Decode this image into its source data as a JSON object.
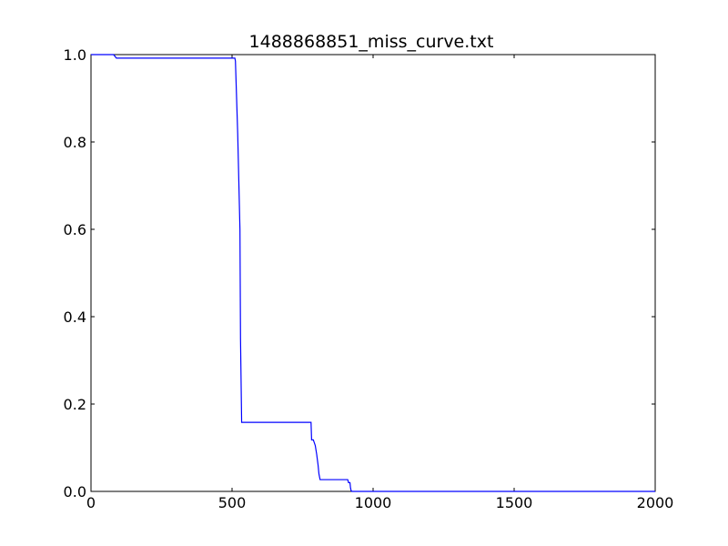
{
  "chart_data": {
    "type": "line",
    "title": "1488868851_miss_curve.txt",
    "xlabel": "",
    "ylabel": "",
    "xlim": [
      0,
      2000
    ],
    "ylim": [
      0.0,
      1.0
    ],
    "x_ticks": [
      0,
      500,
      1000,
      1500,
      2000
    ],
    "x_tick_labels": [
      "0",
      "500",
      "1000",
      "1500",
      "2000"
    ],
    "y_ticks": [
      0.0,
      0.2,
      0.4,
      0.6,
      0.8,
      1.0
    ],
    "y_tick_labels": [
      "0.0",
      "0.2",
      "0.4",
      "0.6",
      "0.8",
      "1.0"
    ],
    "grid": false,
    "legend": "none",
    "series": [
      {
        "color": "#0000ff",
        "x": [
          0,
          80,
          90,
          500,
          510,
          512,
          520,
          528,
          530,
          534,
          780,
          782,
          788,
          795,
          800,
          805,
          808,
          812,
          910,
          913,
          918,
          920,
          922,
          925,
          2000
        ],
        "y": [
          1.0,
          1.0,
          0.992,
          0.992,
          0.992,
          0.985,
          0.82,
          0.6,
          0.35,
          0.158,
          0.158,
          0.118,
          0.118,
          0.105,
          0.085,
          0.06,
          0.04,
          0.027,
          0.027,
          0.02,
          0.02,
          0.008,
          0.002,
          0.0,
          0.0
        ]
      }
    ]
  }
}
